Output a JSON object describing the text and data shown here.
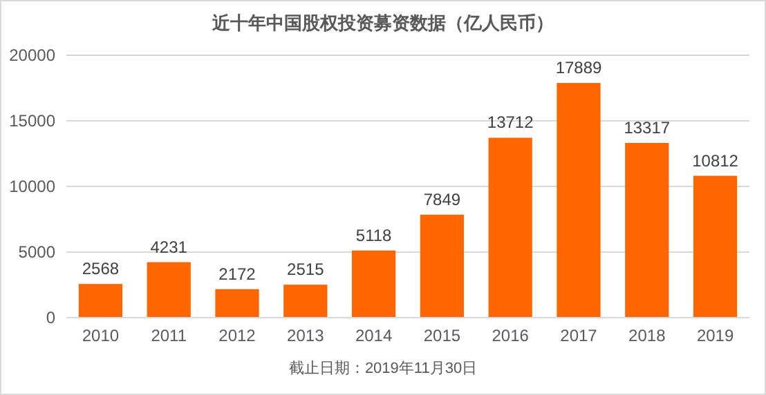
{
  "chart_data": {
    "type": "bar",
    "title": "近十年中国股权投资募资数据（亿人民币）",
    "categories": [
      "2010",
      "2011",
      "2012",
      "2013",
      "2014",
      "2015",
      "2016",
      "2017",
      "2018",
      "2019"
    ],
    "values": [
      2568,
      4231,
      2172,
      2515,
      5118,
      7849,
      13712,
      17889,
      13317,
      10812
    ],
    "color": "#ff6600",
    "ylim": [
      0,
      20000
    ],
    "yticks": [
      0,
      5000,
      10000,
      15000,
      20000
    ],
    "grid": "y",
    "data_labels": true,
    "annotations": [
      "截止日期：2019年11月30日"
    ]
  }
}
